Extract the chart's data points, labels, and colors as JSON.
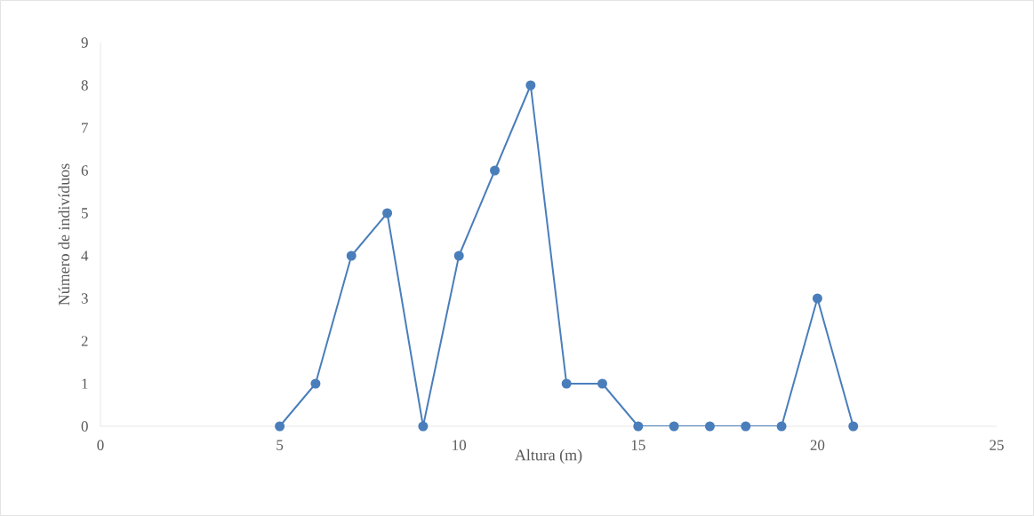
{
  "chart_data": {
    "type": "line",
    "xlabel": "Altura (m)",
    "ylabel": "Número de indivíduos",
    "x": [
      5,
      6,
      7,
      8,
      9,
      10,
      11,
      12,
      13,
      14,
      15,
      16,
      17,
      18,
      19,
      20,
      21
    ],
    "values": [
      0,
      1,
      4,
      5,
      0,
      4,
      6,
      8,
      1,
      1,
      0,
      0,
      0,
      0,
      0,
      3,
      0
    ],
    "color": "#4a7ebb",
    "marker": "circle",
    "line_style": "solid",
    "xlim": [
      0,
      25
    ],
    "xticks": [
      0,
      5,
      10,
      15,
      20,
      25
    ],
    "ylim": [
      0,
      9
    ],
    "yticks": [
      0,
      1,
      2,
      3,
      4,
      5,
      6,
      7,
      8,
      9
    ]
  }
}
